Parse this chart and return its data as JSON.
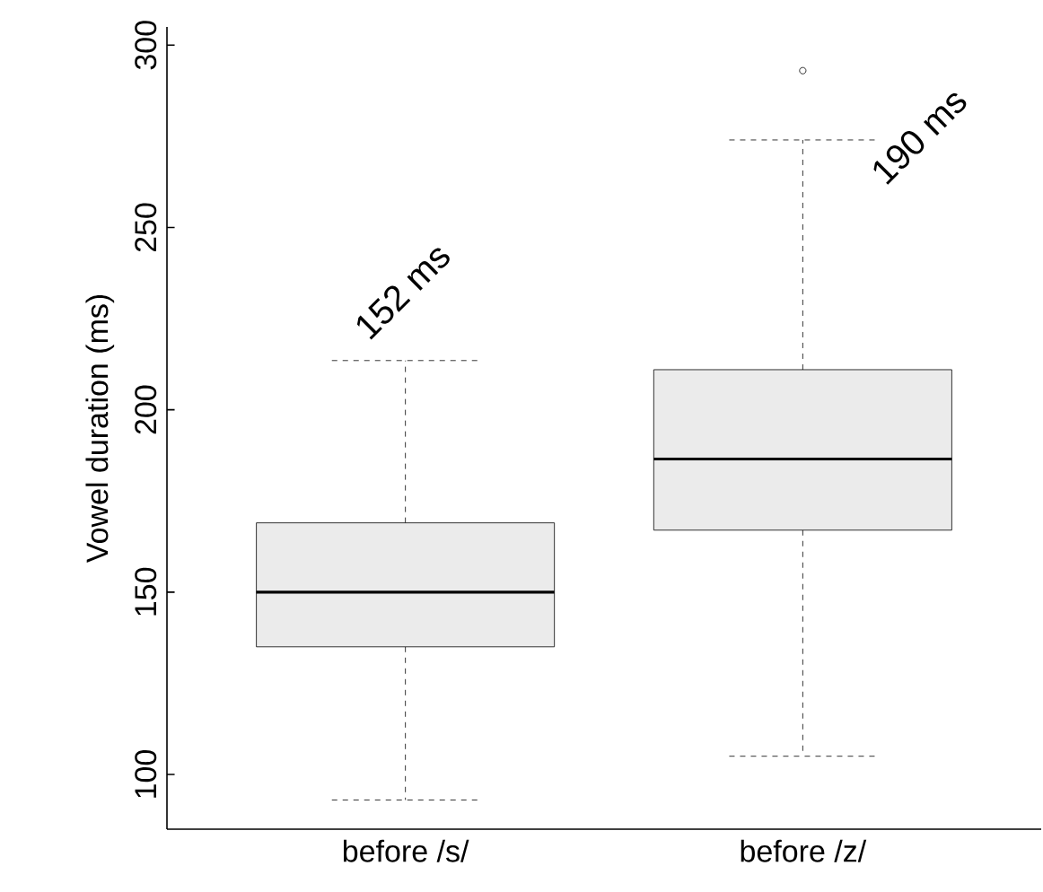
{
  "chart_data": {
    "type": "box",
    "ylabel": "Vowel duration (ms)",
    "categories": [
      "before /s/",
      "before /z/"
    ],
    "boxes": [
      {
        "low": 93,
        "q1": 135,
        "median": 150,
        "q3": 169,
        "high": 213.5
      },
      {
        "low": 105,
        "q1": 167,
        "median": 186.5,
        "q3": 211,
        "high": 274,
        "outliers": [
          293
        ]
      }
    ],
    "color": "#ebebeb",
    "annotations": [
      "152 ms",
      "190 ms"
    ],
    "ylim": [
      85,
      305
    ],
    "yticks": [
      100,
      150,
      200,
      250,
      300
    ],
    "grid": false
  }
}
